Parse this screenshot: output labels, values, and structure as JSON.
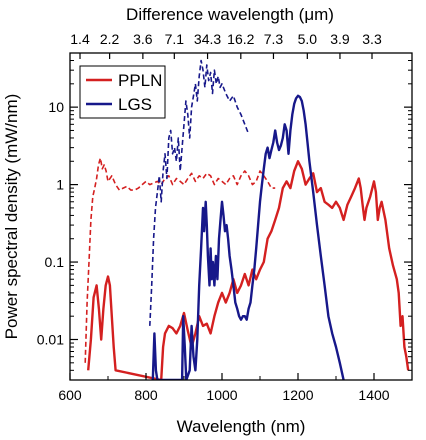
{
  "chart_data": {
    "type": "line",
    "xlabel": "Wavelength (nm)",
    "ylabel": "Power spectral density (mW/nm)",
    "x2label": "Difference wavelength (μm)",
    "xlim": [
      600,
      1500
    ],
    "ylim": [
      0.003,
      50
    ],
    "yscale": "log",
    "x_ticks": [
      600,
      800,
      1000,
      1200,
      1400
    ],
    "y_ticks": [
      {
        "value": 0.01,
        "label": "0.01"
      },
      {
        "value": 0.1,
        "label": "0.1"
      },
      {
        "value": 1,
        "label": "1"
      },
      {
        "value": 10,
        "label": "10"
      }
    ],
    "top_ticks": [
      {
        "x": 631,
        "label": "1.4"
      },
      {
        "x": 680,
        "label": "2.2"
      },
      {
        "x": 735,
        "label": "3.6"
      },
      {
        "x": 787,
        "label": "7.1"
      },
      {
        "x": 842,
        "label": "34.3"
      },
      {
        "x": 897,
        "label": "16.2"
      },
      {
        "x": 951,
        "label": "7.3"
      },
      {
        "x": 1007,
        "label": "5.0"
      },
      {
        "x": 1061,
        "label": "3.9"
      },
      {
        "x": 1114,
        "label": "3.3"
      }
    ],
    "legend_position": "top-left",
    "grid": false,
    "series": [
      {
        "name": "PPLN",
        "color": "#d42020",
        "style": "solid",
        "points": [
          [
            648,
            0.004
          ],
          [
            655,
            0.01
          ],
          [
            662,
            0.035
          ],
          [
            670,
            0.05
          ],
          [
            676,
            0.025
          ],
          [
            682,
            0.01
          ],
          [
            688,
            0.025
          ],
          [
            694,
            0.05
          ],
          [
            700,
            0.065
          ],
          [
            705,
            0.05
          ],
          [
            710,
            0.02
          ],
          [
            715,
            0.008
          ],
          [
            720,
            0.004
          ],
          [
            840,
            0.003
          ],
          [
            845,
            0.008
          ],
          [
            850,
            0.012
          ],
          [
            860,
            0.015
          ],
          [
            870,
            0.014
          ],
          [
            880,
            0.012
          ],
          [
            890,
            0.015
          ],
          [
            900,
            0.022
          ],
          [
            910,
            0.013
          ],
          [
            920,
            0.008
          ],
          [
            930,
            0.012
          ],
          [
            940,
            0.02
          ],
          [
            950,
            0.015
          ],
          [
            960,
            0.016
          ],
          [
            970,
            0.012
          ],
          [
            980,
            0.02
          ],
          [
            990,
            0.03
          ],
          [
            1000,
            0.04
          ],
          [
            1010,
            0.03
          ],
          [
            1020,
            0.04
          ],
          [
            1030,
            0.06
          ],
          [
            1040,
            0.04
          ],
          [
            1050,
            0.05
          ],
          [
            1060,
            0.07
          ],
          [
            1070,
            0.05
          ],
          [
            1080,
            0.08
          ],
          [
            1090,
            0.06
          ],
          [
            1100,
            0.08
          ],
          [
            1110,
            0.1
          ],
          [
            1120,
            0.2
          ],
          [
            1130,
            0.25
          ],
          [
            1140,
            0.35
          ],
          [
            1150,
            0.5
          ],
          [
            1160,
            0.9
          ],
          [
            1170,
            1.1
          ],
          [
            1180,
            0.9
          ],
          [
            1190,
            1.5
          ],
          [
            1200,
            2.0
          ],
          [
            1210,
            1.6
          ],
          [
            1220,
            1.0
          ],
          [
            1230,
            1.2
          ],
          [
            1240,
            1.4
          ],
          [
            1250,
            0.8
          ],
          [
            1260,
            0.9
          ],
          [
            1270,
            0.6
          ],
          [
            1280,
            0.55
          ],
          [
            1290,
            0.5
          ],
          [
            1300,
            0.6
          ],
          [
            1310,
            0.5
          ],
          [
            1320,
            0.35
          ],
          [
            1330,
            0.55
          ],
          [
            1340,
            0.7
          ],
          [
            1350,
            0.9
          ],
          [
            1360,
            1.2
          ],
          [
            1365,
            0.9
          ],
          [
            1370,
            0.55
          ],
          [
            1375,
            0.35
          ],
          [
            1380,
            0.5
          ],
          [
            1390,
            0.7
          ],
          [
            1400,
            1.1
          ],
          [
            1405,
            0.8
          ],
          [
            1410,
            0.35
          ],
          [
            1415,
            0.5
          ],
          [
            1420,
            0.6
          ],
          [
            1430,
            0.35
          ],
          [
            1440,
            0.15
          ],
          [
            1450,
            0.09
          ],
          [
            1460,
            0.06
          ],
          [
            1465,
            0.04
          ],
          [
            1470,
            0.015
          ],
          [
            1475,
            0.02
          ],
          [
            1480,
            0.008
          ],
          [
            1485,
            0.006
          ],
          [
            1490,
            0.004
          ]
        ]
      },
      {
        "name": "PPLN (dashed)",
        "color": "#d42020",
        "style": "dashed",
        "points": [
          [
            640,
            0.005
          ],
          [
            645,
            0.03
          ],
          [
            650,
            0.1
          ],
          [
            655,
            0.35
          ],
          [
            660,
            0.7
          ],
          [
            665,
            0.9
          ],
          [
            670,
            1.2
          ],
          [
            675,
            1.8
          ],
          [
            680,
            2.2
          ],
          [
            685,
            1.6
          ],
          [
            690,
            1.8
          ],
          [
            695,
            1.5
          ],
          [
            700,
            1.1
          ],
          [
            710,
            1.3
          ],
          [
            720,
            1.0
          ],
          [
            730,
            0.85
          ],
          [
            740,
            0.9
          ],
          [
            750,
            0.95
          ],
          [
            760,
            0.85
          ],
          [
            770,
            0.85
          ],
          [
            780,
            0.9
          ],
          [
            790,
            1.0
          ],
          [
            800,
            1.1
          ],
          [
            810,
            1.0
          ],
          [
            820,
            1.05
          ],
          [
            830,
            1.1
          ],
          [
            840,
            1.0
          ],
          [
            850,
            1.2
          ],
          [
            860,
            1.3
          ],
          [
            870,
            1.0
          ],
          [
            880,
            1.2
          ],
          [
            890,
            1.1
          ],
          [
            900,
            1.0
          ],
          [
            910,
            1.2
          ],
          [
            920,
            1.4
          ],
          [
            930,
            1.1
          ],
          [
            940,
            1.3
          ],
          [
            950,
            1.2
          ],
          [
            960,
            1.4
          ],
          [
            970,
            1.3
          ],
          [
            980,
            1.0
          ],
          [
            990,
            1.2
          ],
          [
            1000,
            1.1
          ],
          [
            1010,
            1.0
          ],
          [
            1020,
            1.2
          ],
          [
            1030,
            1.3
          ],
          [
            1040,
            1.0
          ],
          [
            1050,
            1.3
          ],
          [
            1060,
            1.5
          ],
          [
            1070,
            1.3
          ],
          [
            1080,
            1.0
          ],
          [
            1090,
            1.1
          ],
          [
            1100,
            1.5
          ],
          [
            1110,
            1.3
          ],
          [
            1120,
            1.1
          ],
          [
            1130,
            0.9
          ],
          [
            1140,
            0.9
          ]
        ]
      },
      {
        "name": "LGS",
        "color": "#17188a",
        "style": "solid",
        "points": [
          [
            818,
            0.003
          ],
          [
            822,
            0.012
          ],
          [
            826,
            0.004
          ],
          [
            830,
            0.003
          ],
          [
            895,
            0.003
          ],
          [
            898,
            0.02
          ],
          [
            902,
            0.008
          ],
          [
            906,
            0.003
          ],
          [
            915,
            0.004
          ],
          [
            920,
            0.015
          ],
          [
            925,
            0.006
          ],
          [
            930,
            0.004
          ],
          [
            935,
            0.01
          ],
          [
            940,
            0.05
          ],
          [
            945,
            0.15
          ],
          [
            950,
            0.5
          ],
          [
            953,
            0.25
          ],
          [
            957,
            0.6
          ],
          [
            960,
            0.3
          ],
          [
            963,
            0.12
          ],
          [
            967,
            0.05
          ],
          [
            970,
            0.15
          ],
          [
            973,
            0.06
          ],
          [
            976,
            0.1
          ],
          [
            980,
            0.05
          ],
          [
            984,
            0.12
          ],
          [
            988,
            0.06
          ],
          [
            992,
            0.2
          ],
          [
            996,
            0.35
          ],
          [
            1000,
            0.6
          ],
          [
            1004,
            0.4
          ],
          [
            1008,
            0.25
          ],
          [
            1012,
            0.3
          ],
          [
            1016,
            0.2
          ],
          [
            1020,
            0.12
          ],
          [
            1025,
            0.08
          ],
          [
            1030,
            0.05
          ],
          [
            1035,
            0.03
          ],
          [
            1040,
            0.025
          ],
          [
            1045,
            0.02
          ],
          [
            1050,
            0.018
          ],
          [
            1055,
            0.02
          ],
          [
            1060,
            0.02
          ],
          [
            1065,
            0.018
          ],
          [
            1070,
            0.025
          ],
          [
            1075,
            0.03
          ],
          [
            1080,
            0.05
          ],
          [
            1085,
            0.08
          ],
          [
            1090,
            0.15
          ],
          [
            1095,
            0.3
          ],
          [
            1100,
            0.6
          ],
          [
            1105,
            1.0
          ],
          [
            1110,
            1.6
          ],
          [
            1115,
            2.5
          ],
          [
            1120,
            3.0
          ],
          [
            1125,
            2.2
          ],
          [
            1130,
            2.8
          ],
          [
            1135,
            3.5
          ],
          [
            1140,
            5.0
          ],
          [
            1145,
            3.5
          ],
          [
            1150,
            2.8
          ],
          [
            1155,
            3.2
          ],
          [
            1160,
            4.0
          ],
          [
            1165,
            6.0
          ],
          [
            1170,
            5.0
          ],
          [
            1175,
            2.5
          ],
          [
            1180,
            5.0
          ],
          [
            1185,
            8.0
          ],
          [
            1190,
            11.0
          ],
          [
            1195,
            13.0
          ],
          [
            1200,
            14.0
          ],
          [
            1205,
            13.5
          ],
          [
            1210,
            12.0
          ],
          [
            1215,
            9.0
          ],
          [
            1220,
            6.0
          ],
          [
            1225,
            3.5
          ],
          [
            1230,
            2.0
          ],
          [
            1240,
            0.8
          ],
          [
            1250,
            0.3
          ],
          [
            1260,
            0.12
          ],
          [
            1270,
            0.05
          ],
          [
            1280,
            0.02
          ],
          [
            1290,
            0.012
          ],
          [
            1300,
            0.008
          ],
          [
            1310,
            0.005
          ],
          [
            1320,
            0.003
          ]
        ]
      },
      {
        "name": "LGS (dashed)",
        "color": "#17188a",
        "style": "dashed",
        "points": [
          [
            810,
            0.015
          ],
          [
            815,
            0.05
          ],
          [
            820,
            0.2
          ],
          [
            825,
            0.5
          ],
          [
            830,
            0.8
          ],
          [
            835,
            1.3
          ],
          [
            840,
            0.6
          ],
          [
            845,
            1.5
          ],
          [
            850,
            2.5
          ],
          [
            855,
            1.2
          ],
          [
            860,
            4.0
          ],
          [
            865,
            5.0
          ],
          [
            870,
            2.5
          ],
          [
            875,
            3.0
          ],
          [
            880,
            2.0
          ],
          [
            885,
            4.0
          ],
          [
            890,
            1.5
          ],
          [
            895,
            3.0
          ],
          [
            900,
            6.0
          ],
          [
            905,
            12.0
          ],
          [
            910,
            8.0
          ],
          [
            915,
            4.0
          ],
          [
            920,
            10.0
          ],
          [
            925,
            14.0
          ],
          [
            930,
            20.0
          ],
          [
            935,
            12.0
          ],
          [
            940,
            25.0
          ],
          [
            945,
            40.0
          ],
          [
            950,
            30.0
          ],
          [
            955,
            18.0
          ],
          [
            960,
            35.0
          ],
          [
            965,
            22.0
          ],
          [
            970,
            28.0
          ],
          [
            975,
            15.0
          ],
          [
            980,
            30.0
          ],
          [
            985,
            20.0
          ],
          [
            990,
            25.0
          ],
          [
            995,
            18.0
          ],
          [
            1000,
            20.0
          ],
          [
            1010,
            15.0
          ],
          [
            1020,
            12.0
          ],
          [
            1030,
            14.0
          ],
          [
            1040,
            10.0
          ],
          [
            1050,
            8.0
          ],
          [
            1060,
            6.0
          ],
          [
            1070,
            4.5
          ]
        ]
      }
    ]
  },
  "legend": {
    "entries": [
      {
        "label": "PPLN",
        "color": "#d42020"
      },
      {
        "label": "LGS",
        "color": "#17188a"
      }
    ]
  }
}
